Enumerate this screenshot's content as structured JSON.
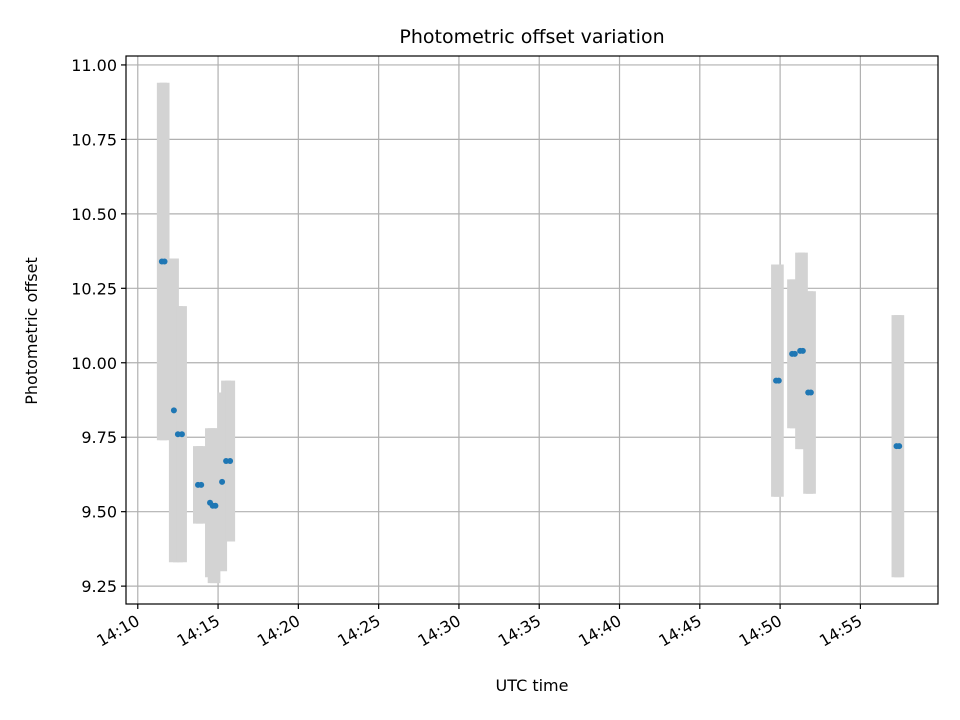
{
  "chart_data": {
    "type": "scatter",
    "title": "Photometric offset variation",
    "xlabel": "UTC time",
    "ylabel": "Photometric offset",
    "xlim": [
      "14:09:16",
      "14:59:50"
    ],
    "ylim": [
      9.19,
      11.03
    ],
    "x_ticks": [
      "14:10",
      "14:15",
      "14:20",
      "14:25",
      "14:30",
      "14:35",
      "14:40",
      "14:45",
      "14:50",
      "14:55"
    ],
    "y_ticks": [
      "9.25",
      "9.50",
      "9.75",
      "10.00",
      "10.25",
      "10.50",
      "10.75",
      "11.00"
    ],
    "grid": true,
    "colors": {
      "points": "#1f77b4",
      "error_bars": "#d3d3d3",
      "grid": "#b0b0b0"
    },
    "points": [
      {
        "t": "14:11:30",
        "y": 10.34,
        "yerr": 0.6
      },
      {
        "t": "14:11:40",
        "y": 10.34,
        "yerr": 0.6
      },
      {
        "t": "14:12:15",
        "y": 9.84,
        "yerr": 0.51
      },
      {
        "t": "14:12:30",
        "y": 9.76,
        "yerr": 0.43
      },
      {
        "t": "14:12:45",
        "y": 9.76,
        "yerr": 0.43
      },
      {
        "t": "14:13:45",
        "y": 9.59,
        "yerr": 0.13
      },
      {
        "t": "14:13:57",
        "y": 9.59,
        "yerr": 0.13
      },
      {
        "t": "14:14:30",
        "y": 9.53,
        "yerr": 0.25
      },
      {
        "t": "14:14:40",
        "y": 9.52,
        "yerr": 0.26
      },
      {
        "t": "14:14:50",
        "y": 9.52,
        "yerr": 0.26
      },
      {
        "t": "14:15:15",
        "y": 9.6,
        "yerr": 0.3
      },
      {
        "t": "14:15:30",
        "y": 9.67,
        "yerr": 0.27
      },
      {
        "t": "14:15:45",
        "y": 9.67,
        "yerr": 0.27
      },
      {
        "t": "14:49:45",
        "y": 9.94,
        "yerr": 0.39
      },
      {
        "t": "14:49:55",
        "y": 9.94,
        "yerr": 0.39
      },
      {
        "t": "14:50:45",
        "y": 10.03,
        "yerr": 0.25
      },
      {
        "t": "14:50:55",
        "y": 10.03,
        "yerr": 0.25
      },
      {
        "t": "14:51:15",
        "y": 10.04,
        "yerr": 0.33
      },
      {
        "t": "14:51:25",
        "y": 10.04,
        "yerr": 0.33
      },
      {
        "t": "14:51:45",
        "y": 9.9,
        "yerr": 0.34
      },
      {
        "t": "14:51:55",
        "y": 9.9,
        "yerr": 0.34
      },
      {
        "t": "14:57:15",
        "y": 9.72,
        "yerr": 0.44
      },
      {
        "t": "14:57:25",
        "y": 9.72,
        "yerr": 0.44
      }
    ]
  }
}
